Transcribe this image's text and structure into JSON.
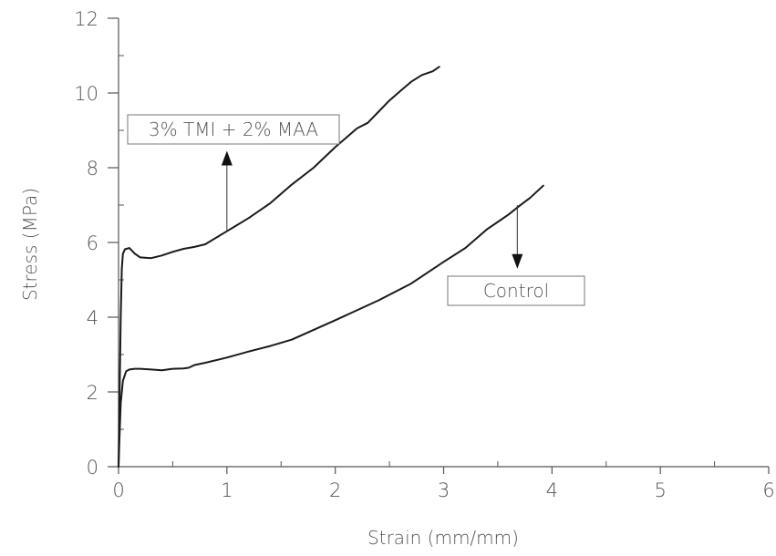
{
  "chart_data": {
    "type": "line",
    "title": "",
    "xlabel": "Strain (mm/mm)",
    "ylabel": "Stress (MPa)",
    "xlim": [
      0,
      6
    ],
    "ylim": [
      0,
      12
    ],
    "x_ticks": [
      "0",
      "1",
      "2",
      "3",
      "4",
      "5",
      "6"
    ],
    "y_ticks": [
      "0",
      "2",
      "4",
      "6",
      "8",
      "10",
      "12"
    ],
    "grid": false,
    "legend": "none",
    "series": [
      {
        "label": "3% TMI + 2% MAA",
        "color": "#1a1a1a",
        "x": [
          0,
          0.01,
          0.02,
          0.03,
          0.04,
          0.06,
          0.1,
          0.15,
          0.2,
          0.3,
          0.4,
          0.5,
          0.6,
          0.7,
          0.8,
          1.0,
          1.2,
          1.4,
          1.6,
          1.8,
          2.0,
          2.2,
          2.3,
          2.4,
          2.5,
          2.6,
          2.7,
          2.8,
          2.9,
          2.96
        ],
        "y": [
          0,
          2.0,
          4.0,
          5.3,
          5.7,
          5.82,
          5.85,
          5.7,
          5.6,
          5.58,
          5.65,
          5.75,
          5.83,
          5.88,
          5.95,
          6.3,
          6.65,
          7.05,
          7.55,
          8.0,
          8.55,
          9.05,
          9.2,
          9.5,
          9.8,
          10.05,
          10.3,
          10.48,
          10.58,
          10.7
        ]
      },
      {
        "label": "Control",
        "color": "#1a1a1a",
        "x": [
          0,
          0.01,
          0.02,
          0.04,
          0.07,
          0.1,
          0.15,
          0.2,
          0.3,
          0.4,
          0.5,
          0.6,
          0.65,
          0.7,
          0.8,
          1.0,
          1.2,
          1.4,
          1.6,
          2.0,
          2.4,
          2.7,
          3.0,
          3.2,
          3.4,
          3.5,
          3.6,
          3.7,
          3.8,
          3.92
        ],
        "y": [
          0,
          0.9,
          1.7,
          2.3,
          2.55,
          2.6,
          2.62,
          2.62,
          2.6,
          2.58,
          2.62,
          2.63,
          2.65,
          2.72,
          2.78,
          2.92,
          3.08,
          3.23,
          3.4,
          3.92,
          4.45,
          4.9,
          5.48,
          5.85,
          6.35,
          6.55,
          6.75,
          6.98,
          7.2,
          7.52
        ]
      }
    ],
    "annotations": [
      {
        "text": "3% TMI + 2% MAA",
        "arrow_from": [
          1.0,
          6.3
        ],
        "arrow_to": [
          1.0,
          8.45
        ]
      },
      {
        "text": "Control",
        "arrow_from": [
          3.68,
          7.0
        ],
        "arrow_to": [
          3.68,
          5.3
        ]
      }
    ]
  }
}
